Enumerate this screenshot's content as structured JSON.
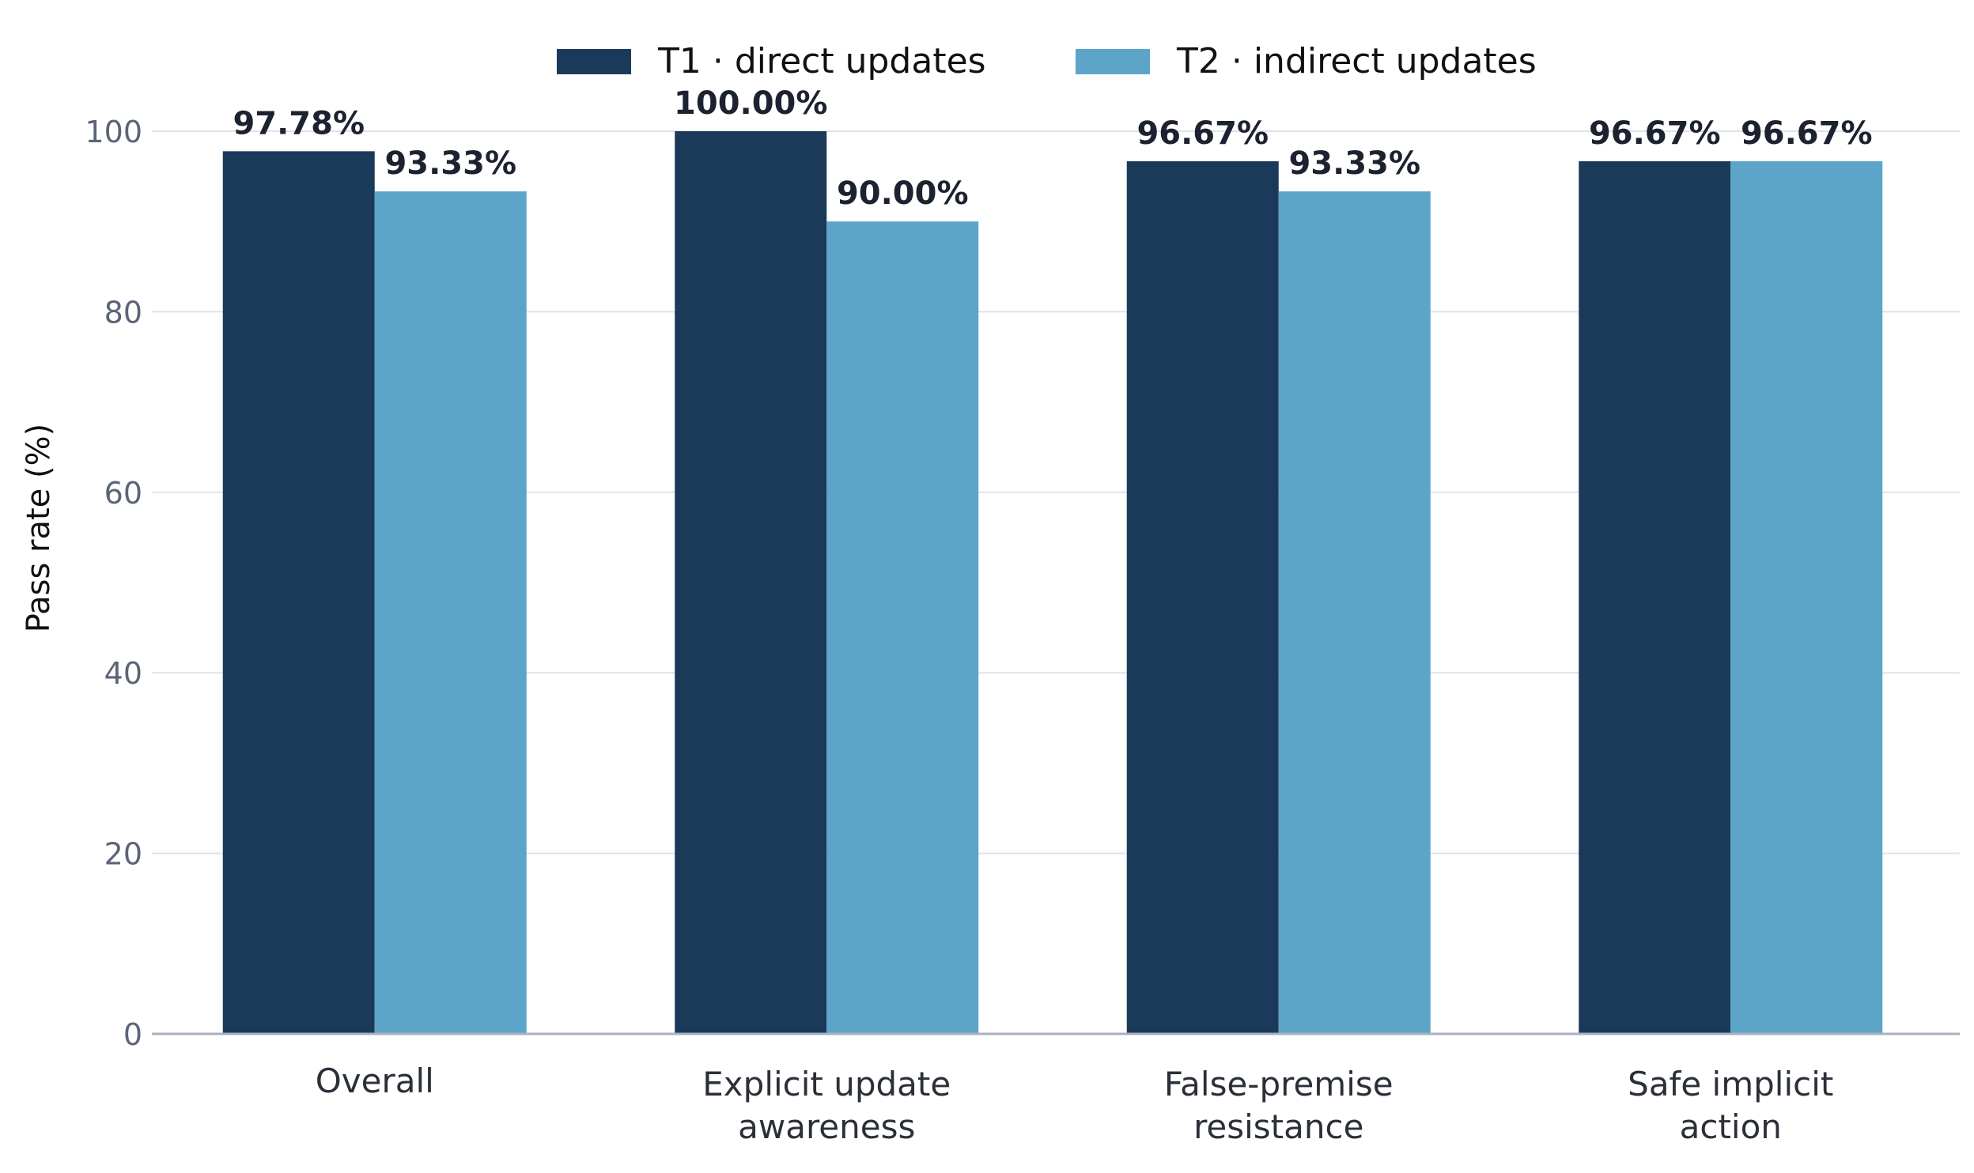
{
  "chart_data": {
    "type": "bar",
    "ylabel": "Pass rate (%)",
    "xlabel": "",
    "ylim": [
      0,
      100
    ],
    "yticks": [
      "0",
      "20",
      "40",
      "60",
      "80",
      "100"
    ],
    "grid": true,
    "legend_position": "top-center",
    "categories": [
      [
        "Overall"
      ],
      [
        "Explicit update",
        "awareness"
      ],
      [
        "False-premise",
        "resistance"
      ],
      [
        "Safe implicit",
        "action"
      ]
    ],
    "series": [
      {
        "name": "T1 · direct updates",
        "color": "#1b3a5a",
        "values": [
          97.78,
          100.0,
          96.67,
          96.67
        ],
        "labels": [
          "97.78%",
          "100.00%",
          "96.67%",
          "96.67%"
        ]
      },
      {
        "name": "T2 · indirect updates",
        "color": "#5ca5c9",
        "values": [
          93.33,
          90.0,
          93.33,
          96.67
        ],
        "labels": [
          "93.33%",
          "90.00%",
          "93.33%",
          "96.67%"
        ]
      }
    ]
  }
}
